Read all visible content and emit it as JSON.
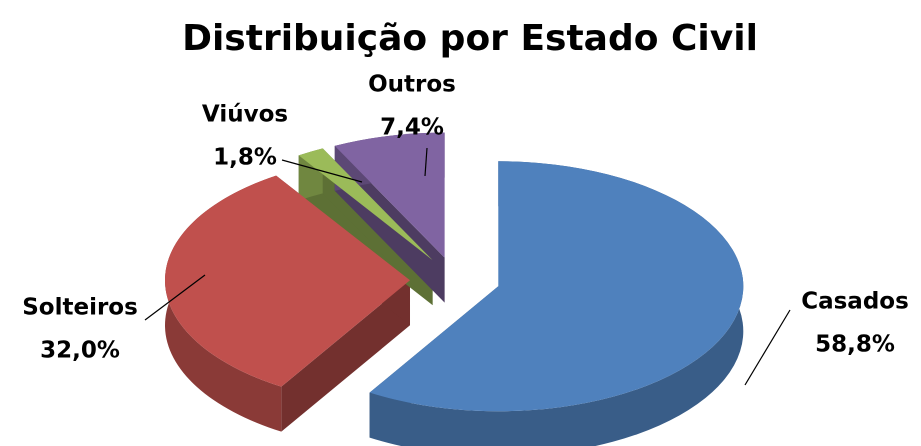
{
  "chart_data": {
    "type": "pie",
    "title": "Distribuição por Estado Civil",
    "categories": [
      "Casados",
      "Solteiros",
      "Viúvos",
      "Outros"
    ],
    "values": [
      58.8,
      32.0,
      1.8,
      7.4
    ],
    "value_labels": [
      "58,8%",
      "32,0%",
      "1,8%",
      "7,4%"
    ],
    "colors": [
      "#4f81bd",
      "#c0504d",
      "#9bbb59",
      "#8064a2"
    ]
  }
}
